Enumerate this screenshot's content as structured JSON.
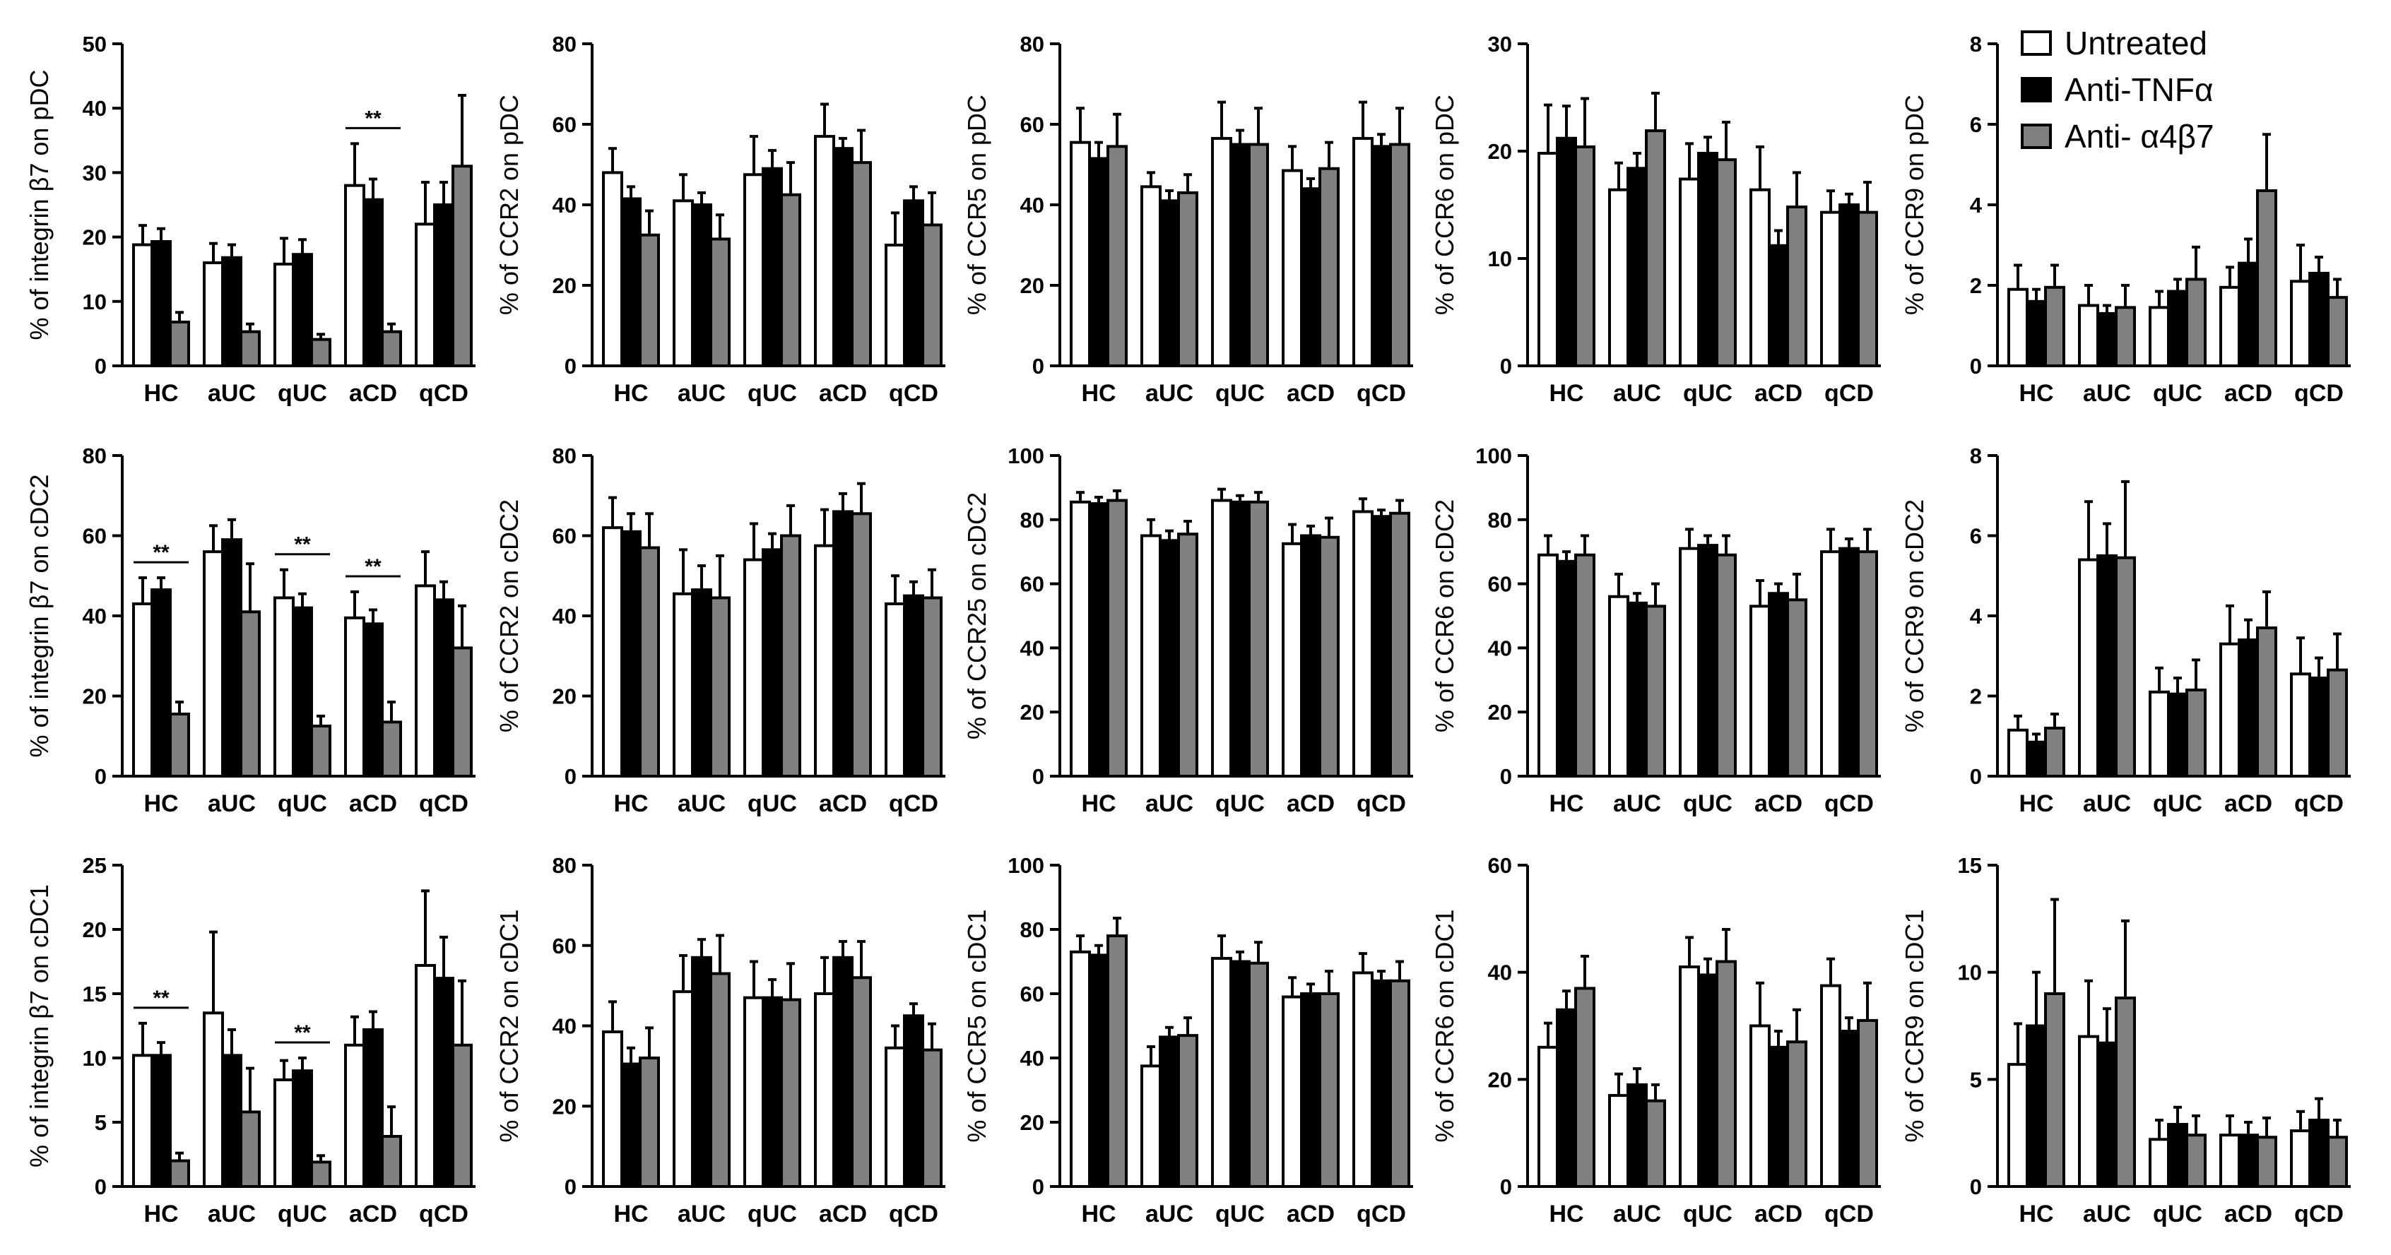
{
  "series_names": [
    "Untreated",
    "Anti-TNFα",
    "Anti- α4β7"
  ],
  "colors": {
    "untreated": "#ffffff",
    "anti_tnf": "#000000",
    "anti_a4b7": "#808080",
    "axis": "#000000"
  },
  "significance_label": "**",
  "chart_data": [
    {
      "type": "bar",
      "ylabel": "% of integrin β7 on pDC",
      "ylim": [
        0,
        50
      ],
      "yticks": [
        0,
        10,
        20,
        30,
        40,
        50
      ],
      "categories": [
        "HC",
        "aUC",
        "qUC",
        "aCD",
        "qCD"
      ],
      "series": [
        {
          "name": "Untreated",
          "values": [
            18.8,
            16.0,
            15.8,
            28.0,
            22.0
          ],
          "errors": [
            3.0,
            3.0,
            4.0,
            6.5,
            6.5
          ]
        },
        {
          "name": "Anti-TNFα",
          "values": [
            19.3,
            16.8,
            17.3,
            25.8,
            25.0
          ],
          "errors": [
            2.0,
            2.0,
            2.3,
            3.2,
            3.5
          ]
        },
        {
          "name": "Anti- α4β7",
          "values": [
            6.8,
            5.3,
            4.1,
            5.3,
            31.0
          ],
          "errors": [
            1.5,
            1.2,
            0.8,
            1.2,
            11.0
          ]
        }
      ],
      "significance": [
        3
      ]
    },
    {
      "type": "bar",
      "ylabel": "% of CCR2 on pDC",
      "ylim": [
        0,
        80
      ],
      "yticks": [
        0,
        20,
        40,
        60,
        80
      ],
      "categories": [
        "HC",
        "aUC",
        "qUC",
        "aCD",
        "qCD"
      ],
      "series": [
        {
          "name": "Untreated",
          "values": [
            48,
            41,
            47.5,
            57,
            30
          ],
          "errors": [
            6,
            6.5,
            9.5,
            8,
            8
          ]
        },
        {
          "name": "Anti-TNFα",
          "values": [
            41.5,
            40,
            49,
            54,
            41
          ],
          "errors": [
            3,
            3,
            4.5,
            2.5,
            3.5
          ]
        },
        {
          "name": "Anti- α4β7",
          "values": [
            32.5,
            31.5,
            42.5,
            50.5,
            35
          ],
          "errors": [
            6,
            6,
            8,
            8,
            8
          ]
        }
      ],
      "significance": []
    },
    {
      "type": "bar",
      "ylabel": "% of CCR5 on pDC",
      "ylim": [
        0,
        80
      ],
      "yticks": [
        0,
        20,
        40,
        60,
        80
      ],
      "categories": [
        "HC",
        "aUC",
        "qUC",
        "aCD",
        "qCD"
      ],
      "series": [
        {
          "name": "Untreated",
          "values": [
            55.5,
            44.5,
            56.5,
            48.5,
            56.5
          ],
          "errors": [
            8.5,
            3.5,
            9,
            6,
            9
          ]
        },
        {
          "name": "Anti-TNFα",
          "values": [
            51.5,
            41,
            55,
            44,
            54.5
          ],
          "errors": [
            4,
            2.5,
            3.5,
            2.5,
            3
          ]
        },
        {
          "name": "Anti- α4β7",
          "values": [
            54.5,
            43,
            55,
            49,
            55
          ],
          "errors": [
            8,
            4.5,
            9,
            6.5,
            9
          ]
        }
      ],
      "significance": []
    },
    {
      "type": "bar",
      "ylabel": "% of CCR6 on pDC",
      "ylim": [
        0,
        30
      ],
      "yticks": [
        0,
        10,
        20,
        30
      ],
      "categories": [
        "HC",
        "aUC",
        "qUC",
        "aCD",
        "qCD"
      ],
      "series": [
        {
          "name": "Untreated",
          "values": [
            19.8,
            16.4,
            17.4,
            16.4,
            14.3
          ],
          "errors": [
            4.5,
            2.5,
            3.3,
            4,
            2
          ]
        },
        {
          "name": "Anti-TNFα",
          "values": [
            21.2,
            18.4,
            19.8,
            11.2,
            15
          ],
          "errors": [
            3,
            1.4,
            1.5,
            1.4,
            1
          ]
        },
        {
          "name": "Anti- α4β7",
          "values": [
            20.4,
            21.9,
            19.2,
            14.8,
            14.3
          ],
          "errors": [
            4.5,
            3.5,
            3.5,
            3.2,
            2.8
          ]
        }
      ],
      "significance": []
    },
    {
      "type": "bar",
      "ylabel": "% of CCR9 on pDC",
      "ylim": [
        0,
        8
      ],
      "yticks": [
        0,
        2,
        4,
        6,
        8
      ],
      "categories": [
        "HC",
        "aUC",
        "qUC",
        "aCD",
        "qCD"
      ],
      "series": [
        {
          "name": "Untreated",
          "values": [
            1.9,
            1.5,
            1.45,
            1.95,
            2.1
          ],
          "errors": [
            0.6,
            0.5,
            0.4,
            0.5,
            0.9
          ]
        },
        {
          "name": "Anti-TNFα",
          "values": [
            1.6,
            1.3,
            1.85,
            2.55,
            2.3
          ],
          "errors": [
            0.3,
            0.2,
            0.3,
            0.6,
            0.4
          ]
        },
        {
          "name": "Anti- α4β7",
          "values": [
            1.95,
            1.45,
            2.15,
            4.35,
            1.7
          ],
          "errors": [
            0.55,
            0.55,
            0.8,
            1.4,
            0.45
          ]
        }
      ],
      "significance": []
    },
    {
      "type": "bar",
      "ylabel": "% of integrin β7 on cDC2",
      "ylim": [
        0,
        80
      ],
      "yticks": [
        0,
        20,
        40,
        60,
        80
      ],
      "categories": [
        "HC",
        "aUC",
        "qUC",
        "aCD",
        "qCD"
      ],
      "series": [
        {
          "name": "Untreated",
          "values": [
            43,
            56,
            44.5,
            39.5,
            47.5
          ],
          "errors": [
            6.5,
            6.5,
            7,
            6.5,
            8.5
          ]
        },
        {
          "name": "Anti-TNFα",
          "values": [
            46.5,
            59,
            42,
            38,
            44
          ],
          "errors": [
            3,
            5,
            3.5,
            3.5,
            4.5
          ]
        },
        {
          "name": "Anti- α4β7",
          "values": [
            15.5,
            41,
            12.5,
            13.5,
            32
          ],
          "errors": [
            3,
            12,
            2.5,
            5,
            10.5
          ]
        }
      ],
      "significance": [
        0,
        2,
        3
      ]
    },
    {
      "type": "bar",
      "ylabel": "% of CCR2 on cDC2",
      "ylim": [
        0,
        80
      ],
      "yticks": [
        0,
        20,
        40,
        60,
        80
      ],
      "categories": [
        "HC",
        "aUC",
        "qUC",
        "aCD",
        "qCD"
      ],
      "series": [
        {
          "name": "Untreated",
          "values": [
            62,
            45.5,
            54,
            57.5,
            43
          ],
          "errors": [
            7.5,
            11,
            9,
            9,
            7
          ]
        },
        {
          "name": "Anti-TNFα",
          "values": [
            61,
            46.5,
            56.5,
            66,
            45
          ],
          "errors": [
            4.5,
            6,
            4,
            4.5,
            3.5
          ]
        },
        {
          "name": "Anti- α4β7",
          "values": [
            57,
            44.5,
            60,
            65.5,
            44.5
          ],
          "errors": [
            8.5,
            10.5,
            7.5,
            7.5,
            7
          ]
        }
      ],
      "significance": []
    },
    {
      "type": "bar",
      "ylabel": "% of CCR25 on cDC2",
      "ylim": [
        0,
        100
      ],
      "yticks": [
        0,
        20,
        40,
        60,
        80,
        100
      ],
      "categories": [
        "HC",
        "aUC",
        "qUC",
        "aCD",
        "qCD"
      ],
      "series": [
        {
          "name": "Untreated",
          "values": [
            85.5,
            75,
            86,
            72.5,
            82.5
          ],
          "errors": [
            3,
            5,
            3.5,
            6,
            4
          ]
        },
        {
          "name": "Anti-TNFα",
          "values": [
            85,
            73.5,
            85.5,
            75,
            81
          ],
          "errors": [
            2,
            3,
            2,
            3,
            2
          ]
        },
        {
          "name": "Anti- α4β7",
          "values": [
            86,
            75.5,
            85.5,
            74.5,
            82
          ],
          "errors": [
            3,
            4,
            3,
            6,
            4
          ]
        }
      ],
      "significance": []
    },
    {
      "type": "bar",
      "ylabel": "% of CCR6 on cDC2",
      "ylim": [
        0,
        100
      ],
      "yticks": [
        0,
        20,
        40,
        60,
        80,
        100
      ],
      "categories": [
        "HC",
        "aUC",
        "qUC",
        "aCD",
        "qCD"
      ],
      "series": [
        {
          "name": "Untreated",
          "values": [
            69,
            56,
            71,
            53,
            70
          ],
          "errors": [
            6,
            7,
            6,
            8,
            7
          ]
        },
        {
          "name": "Anti-TNFα",
          "values": [
            67,
            54,
            72,
            57,
            71
          ],
          "errors": [
            3,
            3,
            3,
            3,
            3
          ]
        },
        {
          "name": "Anti- α4β7",
          "values": [
            69,
            53,
            69,
            55,
            70
          ],
          "errors": [
            6,
            7,
            6,
            8,
            7
          ]
        }
      ],
      "significance": []
    },
    {
      "type": "bar",
      "ylabel": "% of CCR9 on cDC2",
      "ylim": [
        0,
        8
      ],
      "yticks": [
        0,
        2,
        4,
        6,
        8
      ],
      "categories": [
        "HC",
        "aUC",
        "qUC",
        "aCD",
        "qCD"
      ],
      "series": [
        {
          "name": "Untreated",
          "values": [
            1.15,
            5.4,
            2.1,
            3.3,
            2.55
          ],
          "errors": [
            0.35,
            1.45,
            0.6,
            0.95,
            0.9
          ]
        },
        {
          "name": "Anti-TNFα",
          "values": [
            0.85,
            5.5,
            2.05,
            3.4,
            2.45
          ],
          "errors": [
            0.2,
            0.8,
            0.4,
            0.5,
            0.5
          ]
        },
        {
          "name": "Anti- α4β7",
          "values": [
            1.2,
            5.45,
            2.15,
            3.7,
            2.65
          ],
          "errors": [
            0.35,
            1.9,
            0.75,
            0.9,
            0.9
          ]
        }
      ],
      "significance": []
    },
    {
      "type": "bar",
      "ylabel": "% of integrin β7 on cDC1",
      "ylim": [
        0,
        25
      ],
      "yticks": [
        0,
        5,
        10,
        15,
        20,
        25
      ],
      "categories": [
        "HC",
        "aUC",
        "qUC",
        "aCD",
        "qCD"
      ],
      "series": [
        {
          "name": "Untreated",
          "values": [
            10.2,
            13.5,
            8.3,
            11,
            17.2
          ],
          "errors": [
            2.5,
            6.3,
            1.5,
            2.2,
            5.8
          ]
        },
        {
          "name": "Anti-TNFα",
          "values": [
            10.2,
            10.2,
            9,
            12.2,
            16.2
          ],
          "errors": [
            1,
            2,
            1,
            1.4,
            3.2
          ]
        },
        {
          "name": "Anti- α4β7",
          "values": [
            2,
            5.8,
            1.9,
            3.9,
            11
          ],
          "errors": [
            0.6,
            3.4,
            0.5,
            2.3,
            5
          ]
        }
      ],
      "significance": [
        0,
        2
      ]
    },
    {
      "type": "bar",
      "ylabel": "% of CCR2 on cDC1",
      "ylim": [
        0,
        80
      ],
      "yticks": [
        0,
        20,
        40,
        60,
        80
      ],
      "categories": [
        "HC",
        "aUC",
        "qUC",
        "aCD",
        "qCD"
      ],
      "series": [
        {
          "name": "Untreated",
          "values": [
            38.5,
            48.5,
            47,
            48,
            34.5
          ],
          "errors": [
            7.5,
            9,
            9,
            9,
            5.5
          ]
        },
        {
          "name": "Anti-TNFα",
          "values": [
            30.5,
            57,
            47,
            57,
            42.5
          ],
          "errors": [
            4,
            4.5,
            4.5,
            4,
            3
          ]
        },
        {
          "name": "Anti- α4β7",
          "values": [
            32,
            53,
            46.5,
            52,
            34
          ],
          "errors": [
            7.5,
            9.5,
            9,
            9,
            6.5
          ]
        }
      ],
      "significance": []
    },
    {
      "type": "bar",
      "ylabel": "% of CCR5 on cDC1",
      "ylim": [
        0,
        100
      ],
      "yticks": [
        0,
        20,
        40,
        60,
        80,
        100
      ],
      "categories": [
        "HC",
        "aUC",
        "qUC",
        "aCD",
        "qCD"
      ],
      "series": [
        {
          "name": "Untreated",
          "values": [
            73,
            37.5,
            71,
            59,
            66.5
          ],
          "errors": [
            5,
            6,
            7,
            6,
            6
          ]
        },
        {
          "name": "Anti-TNFα",
          "values": [
            72,
            46.5,
            70,
            60,
            64
          ],
          "errors": [
            3,
            3,
            3,
            3,
            3
          ]
        },
        {
          "name": "Anti- α4β7",
          "values": [
            78,
            47,
            69.5,
            60,
            64
          ],
          "errors": [
            5.5,
            5.5,
            6.5,
            7,
            6
          ]
        }
      ],
      "significance": []
    },
    {
      "type": "bar",
      "ylabel": "% of CCR6 on cDC1",
      "ylim": [
        0,
        60
      ],
      "yticks": [
        0,
        20,
        40,
        60
      ],
      "categories": [
        "HC",
        "aUC",
        "qUC",
        "aCD",
        "qCD"
      ],
      "series": [
        {
          "name": "Untreated",
          "values": [
            26,
            17,
            41,
            30,
            37.5
          ],
          "errors": [
            4.5,
            4,
            5.5,
            8,
            5
          ]
        },
        {
          "name": "Anti-TNFα",
          "values": [
            33,
            19,
            39.5,
            26,
            29
          ],
          "errors": [
            3.5,
            3,
            3,
            3,
            2.5
          ]
        },
        {
          "name": "Anti- α4β7",
          "values": [
            37,
            16,
            42,
            27,
            31
          ],
          "errors": [
            6,
            3,
            6,
            6,
            7
          ]
        }
      ],
      "significance": []
    },
    {
      "type": "bar",
      "ylabel": "% of CCR9 on cDC1",
      "ylim": [
        0,
        15
      ],
      "yticks": [
        0,
        5,
        10,
        15
      ],
      "categories": [
        "HC",
        "aUC",
        "qUC",
        "aCD",
        "qCD"
      ],
      "series": [
        {
          "name": "Untreated",
          "values": [
            5.7,
            7,
            2.2,
            2.4,
            2.6
          ],
          "errors": [
            1.9,
            2.6,
            0.9,
            0.9,
            0.9
          ]
        },
        {
          "name": "Anti-TNFα",
          "values": [
            7.5,
            6.7,
            2.9,
            2.4,
            3.1
          ],
          "errors": [
            2.5,
            1.6,
            0.8,
            0.6,
            1
          ]
        },
        {
          "name": "Anti- α4β7",
          "values": [
            9,
            8.8,
            2.4,
            2.3,
            2.3
          ],
          "errors": [
            4.4,
            3.6,
            0.9,
            0.9,
            0.8
          ]
        }
      ],
      "significance": []
    }
  ]
}
